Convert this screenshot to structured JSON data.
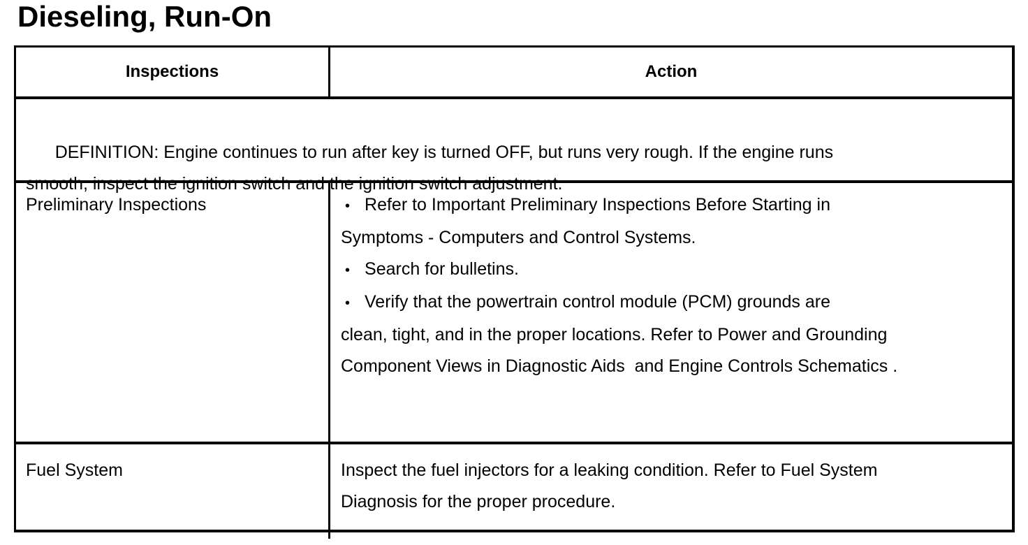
{
  "page_title": "Dieseling, Run-On",
  "table": {
    "headers": {
      "inspections": "Inspections",
      "action": "Action"
    },
    "definition": "DEFINITION: Engine continues to run after key is turned OFF, but runs very rough. If the engine runs\nsmooth, inspect the ignition switch and the ignition switch adjustment.",
    "rows": [
      {
        "inspection": "Preliminary Inspections",
        "action_items": [
          {
            "bullet": "•",
            "text": "Refer to Important Preliminary Inspections Before Starting in\nSymptoms - Computers and Control Systems."
          },
          {
            "bullet": "•",
            "text": "Search for bulletins."
          },
          {
            "bullet": "•",
            "text": "Verify that the powertrain control module (PCM) grounds are\nclean, tight, and in the proper locations. Refer to Power and Grounding\nComponent Views in Diagnostic Aids  and Engine Controls Schematics ."
          }
        ]
      },
      {
        "inspection": "Fuel System",
        "action_text": "Inspect the fuel injectors for a leaking condition. Refer to Fuel System\nDiagnosis for the proper procedure."
      }
    ]
  }
}
